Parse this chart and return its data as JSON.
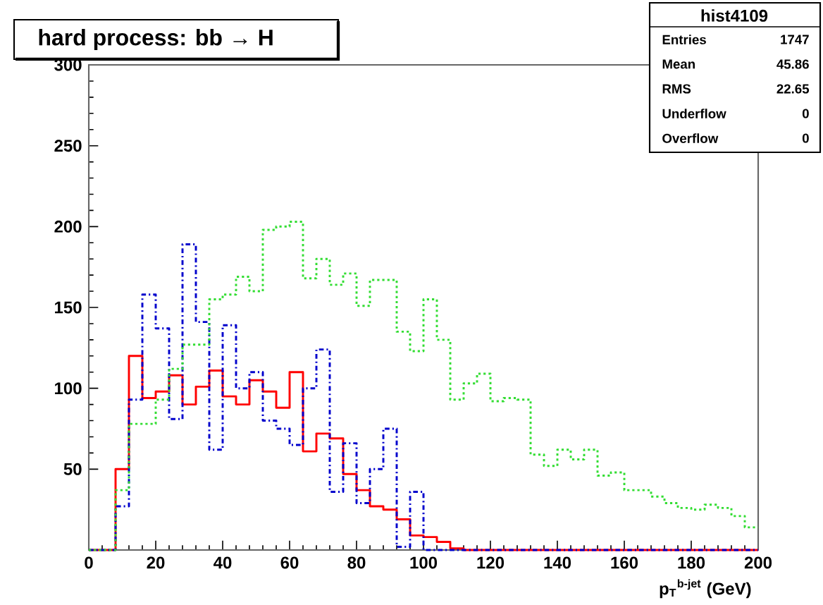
{
  "chart_data": {
    "type": "histogram",
    "title": "hard process:  bb → H",
    "xlabel": "p$_{T}$$^{b-jet}$ (GeV)",
    "bins": [
      0,
      4,
      8,
      12,
      16,
      20,
      24,
      28,
      32,
      36,
      40,
      44,
      48,
      52,
      56,
      60,
      64,
      68,
      72,
      76,
      80,
      84,
      88,
      92,
      96,
      100,
      104,
      108,
      112,
      116,
      120,
      124,
      128,
      132,
      136,
      140,
      144,
      148,
      152,
      156,
      160,
      164,
      168,
      172,
      176,
      180,
      184,
      188,
      192,
      196,
      200
    ],
    "series": [
      {
        "color": "#ff0000",
        "line_style": "solid",
        "values": [
          0,
          0,
          50,
          120,
          94,
          98,
          108,
          90,
          101,
          111,
          95,
          90,
          105,
          98,
          88,
          110,
          61,
          72,
          69,
          47,
          37,
          27,
          25,
          19,
          9,
          8,
          5,
          1,
          0,
          0,
          0,
          0,
          0,
          0,
          0,
          0,
          0,
          0,
          0,
          0,
          0,
          0,
          0,
          0,
          0,
          0,
          0,
          0,
          0,
          0
        ]
      },
      {
        "color": "#0000cc",
        "line_style": "dashed",
        "values": [
          0,
          0,
          27,
          93,
          158,
          137,
          81,
          189,
          141,
          62,
          139,
          100,
          110,
          80,
          75,
          65,
          100,
          124,
          36,
          66,
          29,
          50,
          75,
          2,
          36,
          0,
          0,
          0,
          0,
          0,
          0,
          0,
          0,
          0,
          0,
          0,
          0,
          0,
          0,
          0,
          0,
          0,
          0,
          0,
          0,
          0,
          0,
          0,
          0,
          0
        ]
      },
      {
        "color": "#33dd33",
        "line_style": "dotted",
        "values": [
          0,
          0,
          37,
          78,
          78,
          93,
          112,
          127,
          127,
          155,
          158,
          169,
          160,
          198,
          200,
          203,
          168,
          180,
          164,
          171,
          151,
          167,
          167,
          135,
          123,
          155,
          130,
          93,
          103,
          109,
          92,
          94,
          93,
          59,
          52,
          62,
          56,
          62,
          46,
          48,
          37,
          37,
          33,
          29,
          26,
          25,
          28,
          26,
          21,
          14
        ]
      }
    ],
    "xlim": [
      0,
      200
    ],
    "xticks": [
      0,
      20,
      40,
      60,
      80,
      100,
      120,
      140,
      160,
      180,
      200
    ],
    "ylim": [
      0,
      300
    ],
    "yticks": [
      50,
      100,
      150,
      200,
      250,
      300
    ],
    "grid": false,
    "annotations": [
      "hist4109",
      "Entries",
      "1747",
      "Mean",
      "45.86",
      "RMS",
      "22.65",
      "Underflow",
      "0",
      "Overflow",
      "0"
    ]
  }
}
